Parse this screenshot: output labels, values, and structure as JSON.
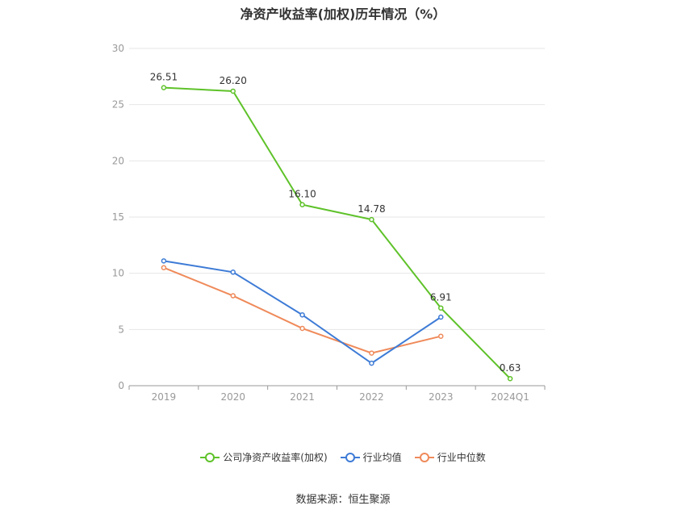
{
  "chart_data": {
    "type": "line",
    "title": "净资产收益率(加权)历年情况（%）",
    "categories": [
      "2019",
      "2020",
      "2021",
      "2022",
      "2023",
      "2024Q1"
    ],
    "ylim": [
      0,
      30
    ],
    "yticks": [
      0,
      5,
      10,
      15,
      20,
      25,
      30
    ],
    "grid": true,
    "legend_position": "bottom",
    "series": [
      {
        "name": "公司净资产收益率(加权)",
        "color": "#5ec229",
        "values": [
          26.51,
          26.2,
          16.1,
          14.78,
          6.91,
          0.63
        ],
        "data_labels": [
          "26.51",
          "26.20",
          "16.10",
          "14.78",
          "6.91",
          "0.63"
        ]
      },
      {
        "name": "行业均值",
        "color": "#3d7bd6",
        "values": [
          11.1,
          10.1,
          6.3,
          2.0,
          6.1,
          null
        ]
      },
      {
        "name": "行业中位数",
        "color": "#ef8a5a",
        "values": [
          10.5,
          8.0,
          5.1,
          2.9,
          4.4,
          null
        ]
      }
    ]
  },
  "footer": {
    "source": "数据来源：恒生聚源"
  }
}
